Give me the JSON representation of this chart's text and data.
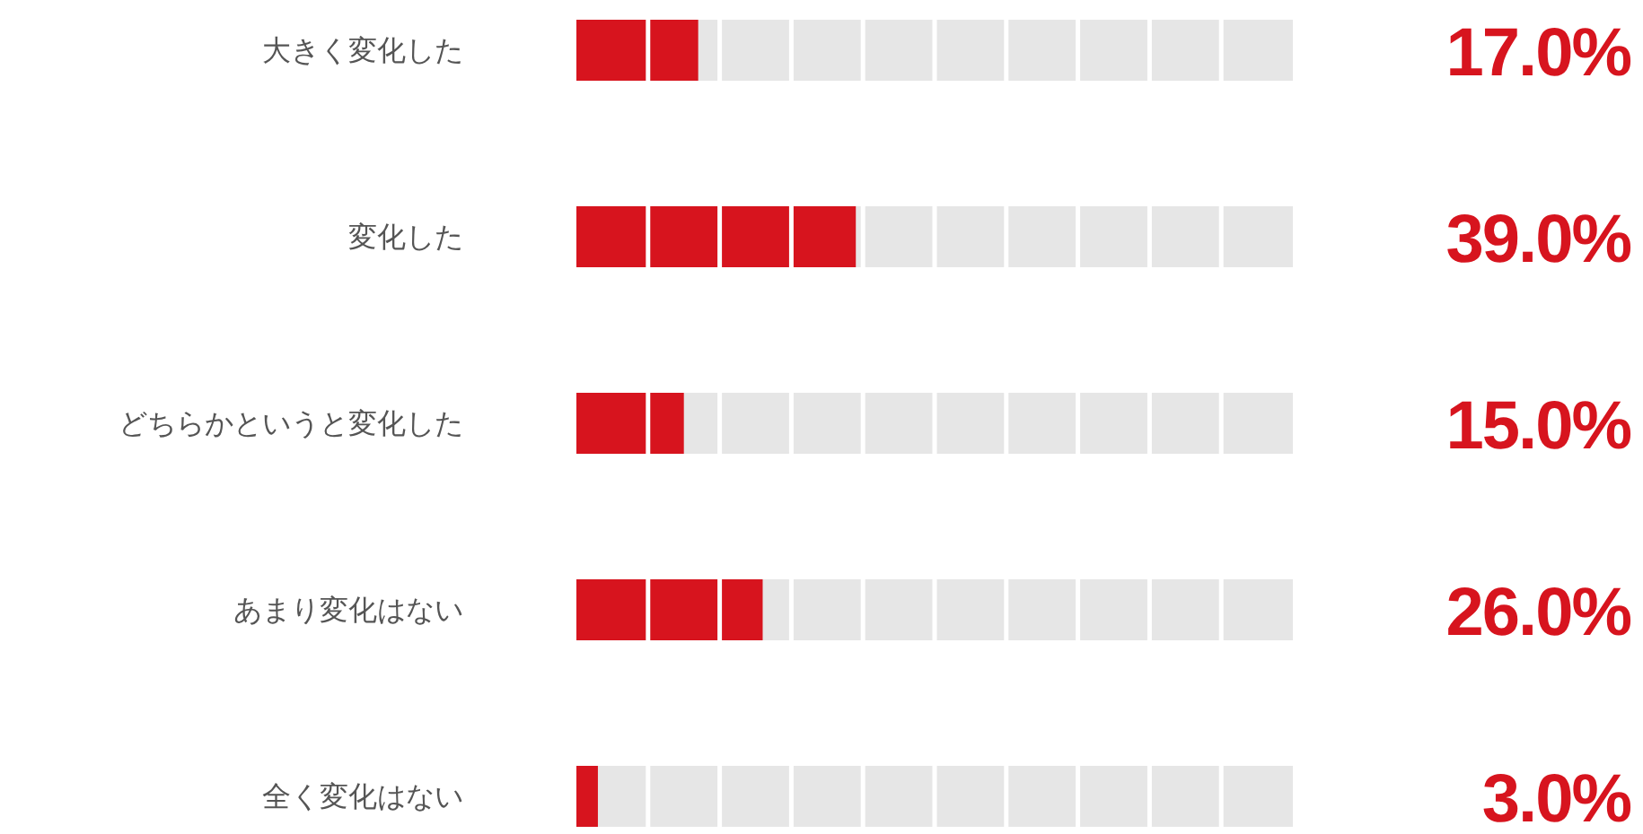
{
  "chart_data": {
    "type": "bar",
    "orientation": "horizontal",
    "categories": [
      "大きく変化した",
      "変化した",
      "どちらかというと変化した",
      "あまり変化はない",
      "全く変化はない"
    ],
    "values": [
      17,
      39,
      15,
      26,
      3
    ],
    "value_labels": [
      "17.0%",
      "39.0%",
      "15.0%",
      "26.0%",
      "3.0%"
    ],
    "color": "#d7141e",
    "xlim": [
      0,
      100
    ],
    "bands": [
      {
        "axis": "x",
        "from": 0,
        "to": 100,
        "color": "#e6e6e6"
      }
    ]
  }
}
